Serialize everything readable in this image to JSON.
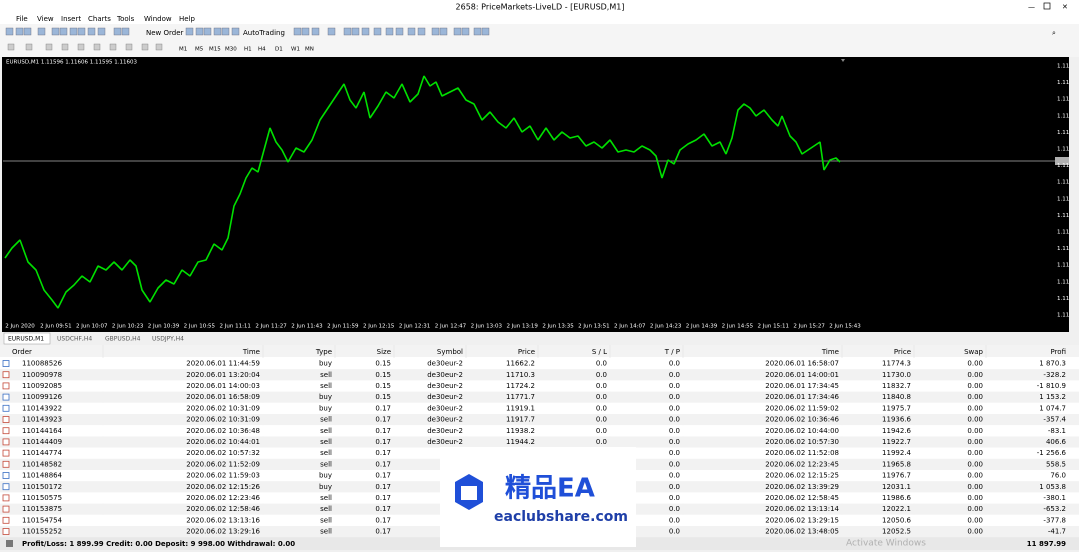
{
  "window": {
    "title": "2658: PriceMarkets-LiveLD - [EURUSD,M1]",
    "menu": [
      "File",
      "View",
      "Insert",
      "Charts",
      "Tools",
      "Window",
      "Help"
    ],
    "toolbar": {
      "new_order": "New Order",
      "autotrading": "AutoTrading",
      "timeframes": [
        "M1",
        "M5",
        "M15",
        "M30",
        "H1",
        "H4",
        "D1",
        "W1",
        "MN"
      ]
    }
  },
  "chart": {
    "label": "EURUSD,M1 1.11596 1.11606 1.11595 1.11603",
    "price_labels": [
      "1.11",
      "1.11",
      "1.11",
      "1.11",
      "1.11",
      "1.11",
      "1.11",
      "1.11",
      "1.11",
      "1.11",
      "1.11",
      "1.11",
      "1.11",
      "1.11",
      "1.11",
      "1.11"
    ],
    "time_labels": [
      "2 Jun 2020",
      "2 Jun 09:51",
      "2 Jun 10:07",
      "2 Jun 10:23",
      "2 Jun 10:39",
      "2 Jun 10:55",
      "2 Jun 11:11",
      "2 Jun 11:27",
      "2 Jun 11:43",
      "2 Jun 11:59",
      "2 Jun 12:15",
      "2 Jun 12:31",
      "2 Jun 12:47",
      "2 Jun 13:03",
      "2 Jun 13:19",
      "2 Jun 13:35",
      "2 Jun 13:51",
      "2 Jun 14:07",
      "2 Jun 14:23",
      "2 Jun 14:39",
      "2 Jun 14:55",
      "2 Jun 15:11",
      "2 Jun 15:27",
      "2 Jun 15:43"
    ]
  },
  "tabs": [
    "EURUSD,M1",
    "USDCHF,H4",
    "GBPUSD,H4",
    "USDJPY,H4"
  ],
  "table": {
    "columns": [
      "Order",
      "Time",
      "Type",
      "Size",
      "Symbol",
      "Price",
      "S / L",
      "T / P",
      "Time",
      "Price",
      "Swap",
      "Profi"
    ],
    "rows": [
      [
        "110088526",
        "2020.06.01 11:44:59",
        "buy",
        "0.15",
        "de30eur-2",
        "11662.2",
        "0.0",
        "0.0",
        "2020.06.01 16:58:07",
        "11774.3",
        "0.00",
        "1 870.3"
      ],
      [
        "110090978",
        "2020.06.01 13:20:04",
        "sell",
        "0.15",
        "de30eur-2",
        "11710.3",
        "0.0",
        "0.0",
        "2020.06.01 14:00:01",
        "11730.0",
        "0.00",
        "-328.2"
      ],
      [
        "110092085",
        "2020.06.01 14:00:03",
        "sell",
        "0.15",
        "de30eur-2",
        "11724.2",
        "0.0",
        "0.0",
        "2020.06.01 17:34:45",
        "11832.7",
        "0.00",
        "-1 810.9"
      ],
      [
        "110099126",
        "2020.06.01 16:58:09",
        "buy",
        "0.15",
        "de30eur-2",
        "11771.7",
        "0.0",
        "0.0",
        "2020.06.01 17:34:46",
        "11840.8",
        "0.00",
        "1 153.2"
      ],
      [
        "110143922",
        "2020.06.02 10:31:09",
        "buy",
        "0.17",
        "de30eur-2",
        "11919.1",
        "0.0",
        "0.0",
        "2020.06.02 11:59:02",
        "11975.7",
        "0.00",
        "1 074.7"
      ],
      [
        "110143923",
        "2020.06.02 10:31:09",
        "sell",
        "0.17",
        "de30eur-2",
        "11917.7",
        "0.0",
        "0.0",
        "2020.06.02 10:36:46",
        "11936.6",
        "0.00",
        "-357.4"
      ],
      [
        "110144164",
        "2020.06.02 10:36:48",
        "sell",
        "0.17",
        "de30eur-2",
        "11938.2",
        "0.0",
        "0.0",
        "2020.06.02 10:44:00",
        "11942.6",
        "0.00",
        "-83.1"
      ],
      [
        "110144409",
        "2020.06.02 10:44:01",
        "sell",
        "0.17",
        "de30eur-2",
        "11944.2",
        "0.0",
        "0.0",
        "2020.06.02 10:57:30",
        "11922.7",
        "0.00",
        "406.6"
      ],
      [
        "110144774",
        "2020.06.02 10:57:32",
        "sell",
        "0.17",
        "de",
        null,
        null,
        "0.0",
        "2020.06.02 11:52:08",
        "11992.4",
        "0.00",
        "-1 256.6"
      ],
      [
        "110148582",
        "2020.06.02 11:52:09",
        "sell",
        "0.17",
        "de",
        null,
        null,
        "0.0",
        "2020.06.02 12:23:45",
        "11965.8",
        "0.00",
        "558.5"
      ],
      [
        "110148864",
        "2020.06.02 11:59:03",
        "buy",
        "0.17",
        "de",
        null,
        null,
        "0.0",
        "2020.06.02 12:15:25",
        "11976.7",
        "0.00",
        "76.0"
      ],
      [
        "110150172",
        "2020.06.02 12:15:26",
        "buy",
        "0.17",
        "de",
        null,
        null,
        "0.0",
        "2020.06.02 13:39:29",
        "12031.1",
        "0.00",
        "1 053.8"
      ],
      [
        "110150575",
        "2020.06.02 12:23:46",
        "sell",
        "0.17",
        "de",
        null,
        null,
        "0.0",
        "2020.06.02 12:58:45",
        "11986.6",
        "0.00",
        "-380.1"
      ],
      [
        "110153875",
        "2020.06.02 12:58:46",
        "sell",
        "0.17",
        "de",
        null,
        null,
        "0.0",
        "2020.06.02 13:13:14",
        "12022.1",
        "0.00",
        "-653.2"
      ],
      [
        "110154754",
        "2020.06.02 13:13:16",
        "sell",
        "0.17",
        "de",
        null,
        null,
        "0.0",
        "2020.06.02 13:29:15",
        "12050.6",
        "0.00",
        "-377.8"
      ],
      [
        "110155252",
        "2020.06.02 13:29:16",
        "sell",
        "0.17",
        "de",
        null,
        null,
        "0.0",
        "2020.06.02 13:48:05",
        "12052.5",
        "0.00",
        "-41.7"
      ]
    ]
  },
  "footer": {
    "summary": "Profit/Loss: 1 899.99 Credit: 0.00 Deposit: 9 998.00 Withdrawal: 0.00",
    "total": "11 897.99"
  },
  "watermark": {
    "brand": "精品EA",
    "site": "eaclubshare.com"
  },
  "overlay": "Activate Windows"
}
